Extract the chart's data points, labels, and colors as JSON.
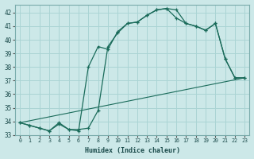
{
  "xlabel": "Humidex (Indice chaleur)",
  "ylabel": "",
  "bg_color": "#cce8e8",
  "grid_color": "#aad4d4",
  "line_color": "#1a6b5a",
  "xlim": [
    -0.5,
    23.5
  ],
  "ylim": [
    33,
    42.6
  ],
  "yticks": [
    33,
    34,
    35,
    36,
    37,
    38,
    39,
    40,
    41,
    42
  ],
  "xticks": [
    0,
    1,
    2,
    3,
    4,
    5,
    6,
    7,
    8,
    9,
    10,
    11,
    12,
    13,
    14,
    15,
    16,
    17,
    18,
    19,
    20,
    21,
    22,
    23
  ],
  "line1_x": [
    0,
    1,
    2,
    3,
    4,
    5,
    6,
    7,
    8,
    9,
    10,
    11,
    12,
    13,
    14,
    15,
    16,
    17,
    18,
    19,
    20,
    21,
    22,
    23
  ],
  "line1_y": [
    33.9,
    33.7,
    33.5,
    33.3,
    33.9,
    33.4,
    33.4,
    33.5,
    34.8,
    39.5,
    40.5,
    41.2,
    41.3,
    41.8,
    42.2,
    42.3,
    42.2,
    41.2,
    41.0,
    40.7,
    41.2,
    38.6,
    37.2,
    37.2
  ],
  "line2_x": [
    0,
    1,
    2,
    3,
    4,
    5,
    6,
    7,
    8,
    9,
    10,
    11,
    12,
    13,
    14,
    15,
    16,
    17,
    18,
    19,
    20,
    21,
    22,
    23
  ],
  "line2_y": [
    33.9,
    33.7,
    33.5,
    33.3,
    33.8,
    33.4,
    33.3,
    38.0,
    39.5,
    39.3,
    40.6,
    41.2,
    41.3,
    41.8,
    42.2,
    42.3,
    41.6,
    41.2,
    41.0,
    40.7,
    41.2,
    38.6,
    37.2,
    37.2
  ],
  "line3_x": [
    0,
    23
  ],
  "line3_y": [
    33.9,
    37.2
  ]
}
